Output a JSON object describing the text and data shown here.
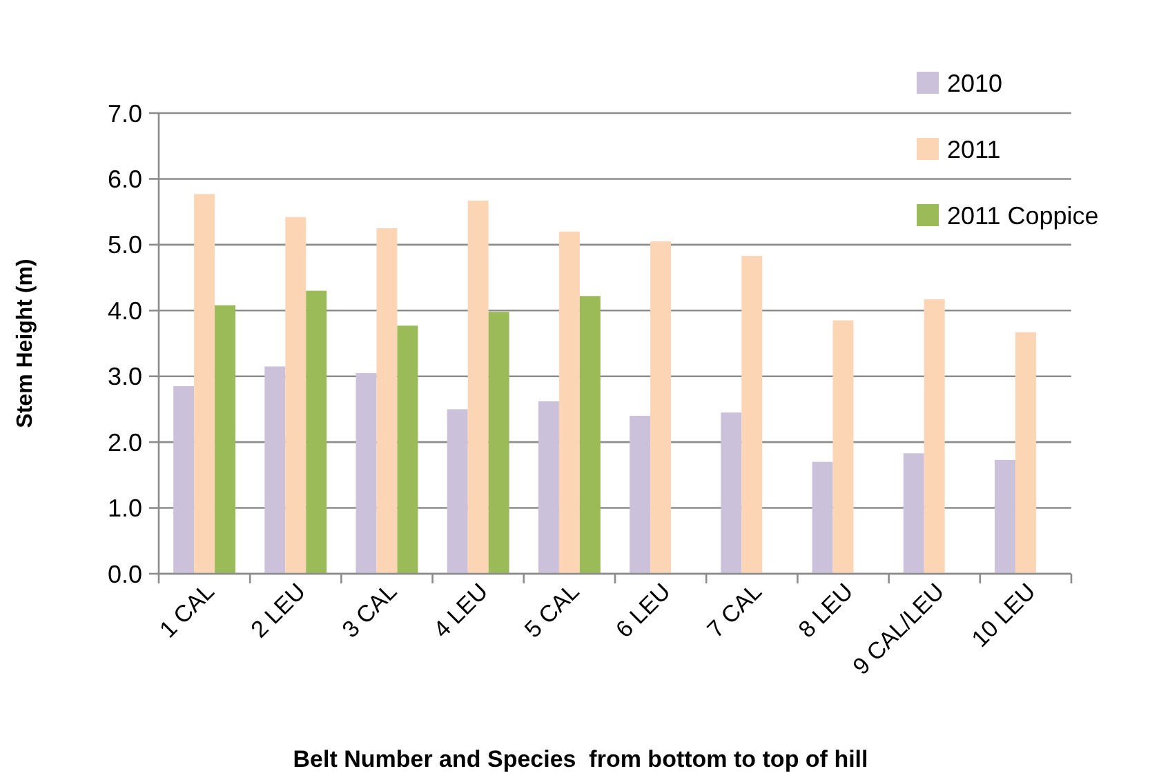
{
  "chart_data": {
    "type": "bar",
    "xlabel": "Belt Number and Species  from bottom to top of hill",
    "ylabel": "Stem Height (m)",
    "categories": [
      "1 CAL",
      "2 LEU",
      "3 CAL",
      "4 LEU",
      "5 CAL",
      "6 LEU",
      "7 CAL",
      "8 LEU",
      "9 CAL/LEU",
      "10 LEU"
    ],
    "series": [
      {
        "name": "2010",
        "color": "#ccc1da",
        "values": [
          2.85,
          3.15,
          3.05,
          2.5,
          2.62,
          2.4,
          2.45,
          1.7,
          1.83,
          1.73
        ]
      },
      {
        "name": "2011",
        "color": "#fcd5b5",
        "values": [
          5.77,
          5.42,
          5.25,
          5.67,
          5.2,
          5.05,
          4.83,
          3.85,
          4.17,
          3.67
        ]
      },
      {
        "name": "2011 Coppice",
        "color": "#9bbb59",
        "values": [
          4.08,
          4.3,
          3.77,
          3.98,
          4.22,
          null,
          null,
          null,
          null,
          null
        ]
      }
    ],
    "ylim": [
      0,
      7
    ],
    "yticks": [
      {
        "value": 0,
        "label": "0.0"
      },
      {
        "value": 1,
        "label": "1.0"
      },
      {
        "value": 2,
        "label": "2.0"
      },
      {
        "value": 3,
        "label": "3.0"
      },
      {
        "value": 4,
        "label": "4.0"
      },
      {
        "value": 5,
        "label": "5.0"
      },
      {
        "value": 6,
        "label": "6.0"
      },
      {
        "value": 7,
        "label": "7.0"
      }
    ],
    "grid": "y",
    "legend": "top right"
  }
}
